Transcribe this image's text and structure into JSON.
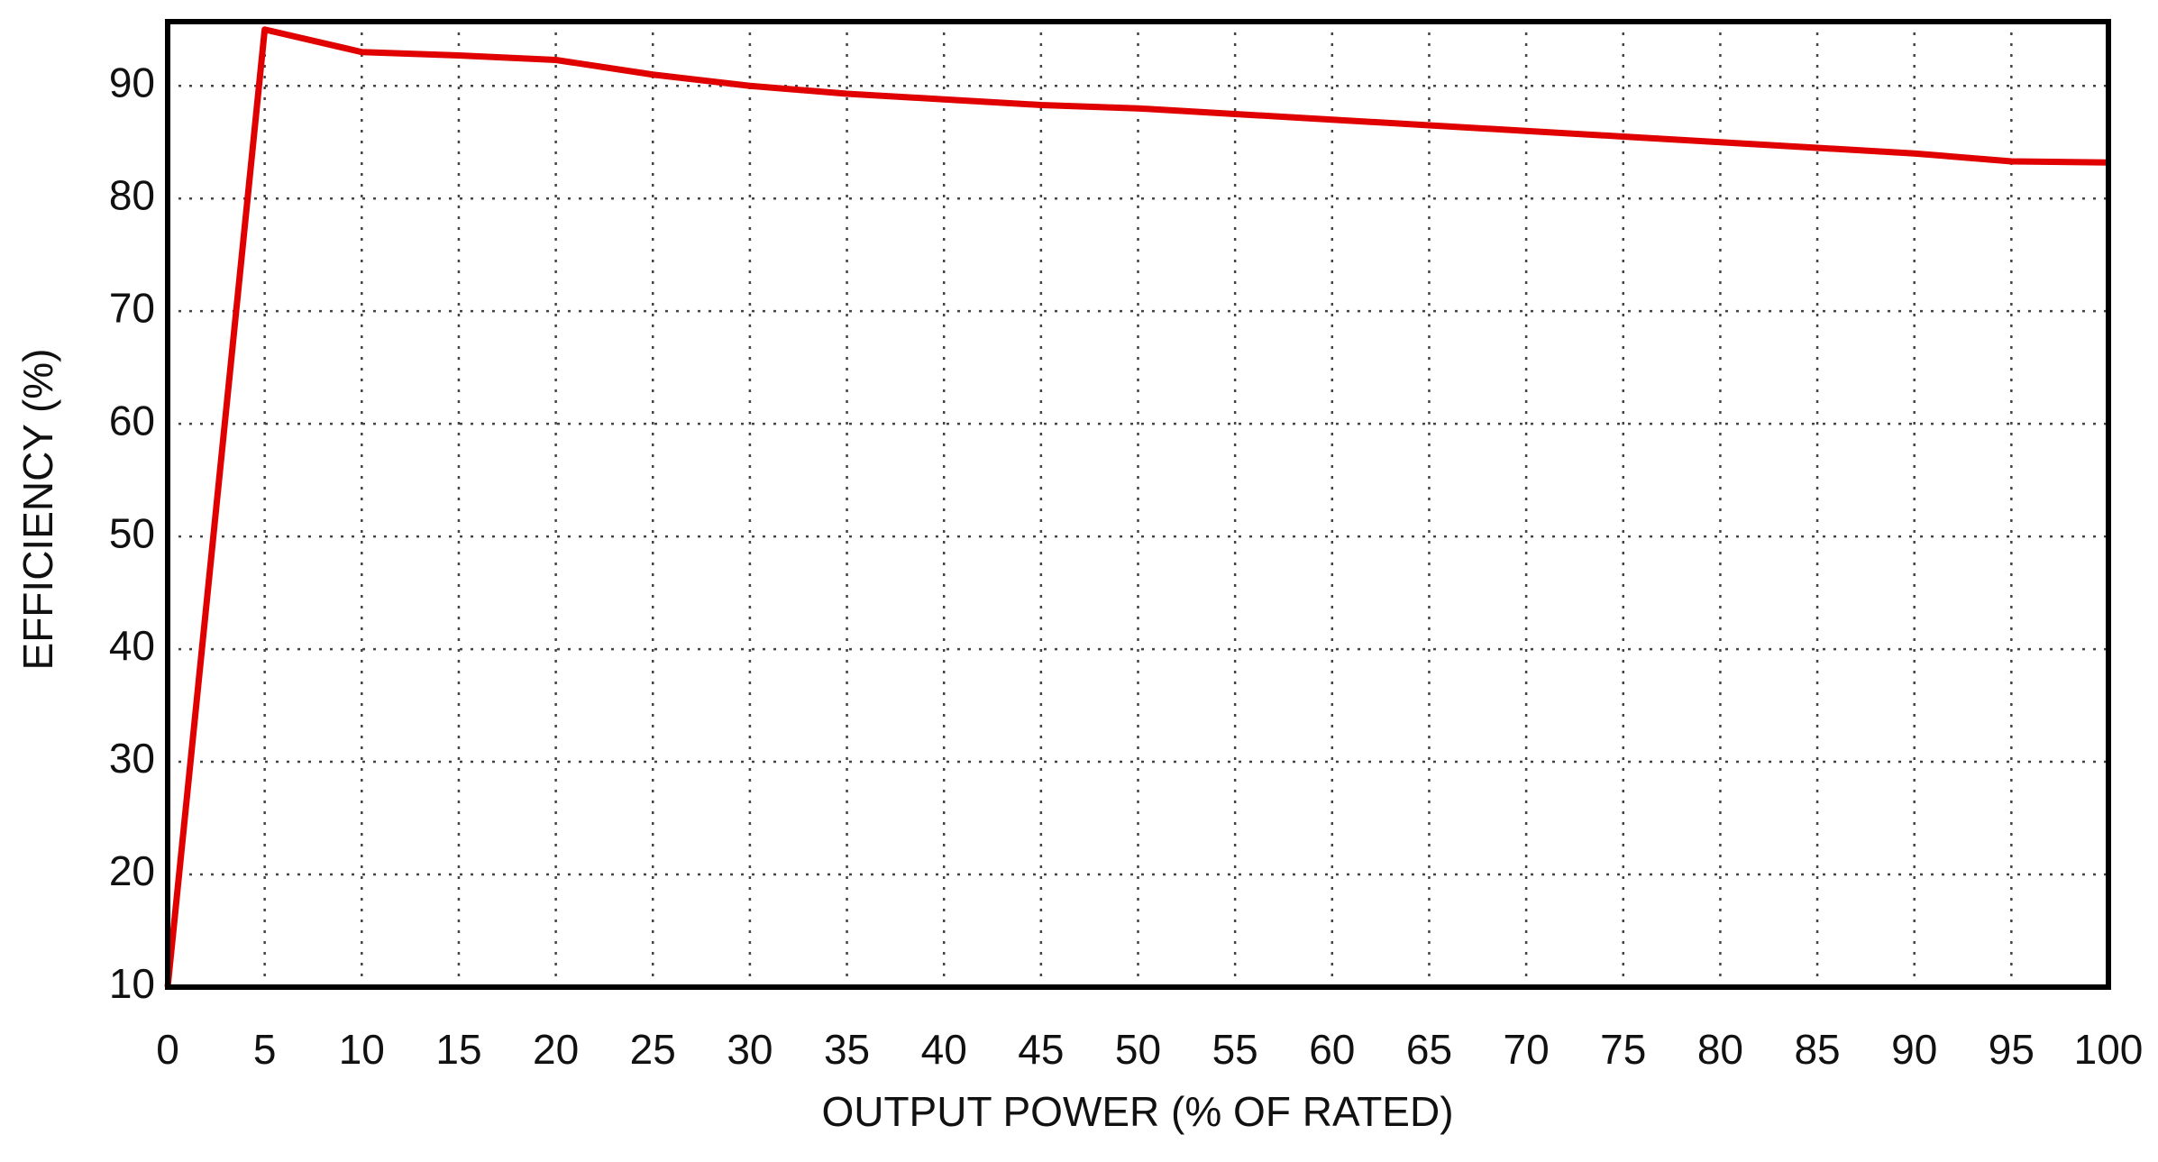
{
  "chart_data": {
    "type": "line",
    "x_label": "OUTPUT POWER (% OF RATED)",
    "y_label": "EFFICIENCY (%)",
    "x": [
      0,
      5,
      10,
      15,
      20,
      25,
      30,
      35,
      40,
      45,
      50,
      55,
      60,
      65,
      70,
      75,
      80,
      85,
      90,
      95,
      100
    ],
    "series": [
      {
        "color": "#e00000",
        "values": [
          10,
          95,
          93,
          92.7,
          92.3,
          91,
          90,
          89.3,
          88.8,
          88.3,
          88,
          87.5,
          87,
          86.5,
          86,
          85.5,
          85,
          84.5,
          84,
          83.3,
          83.2
        ]
      }
    ],
    "xlim": [
      0,
      100
    ],
    "xticks": [
      0,
      5,
      10,
      15,
      20,
      25,
      30,
      35,
      40,
      45,
      50,
      55,
      60,
      65,
      70,
      75,
      80,
      85,
      90,
      95,
      100
    ],
    "ylim": [
      10,
      95.7
    ],
    "yticks": [
      10,
      20,
      30,
      40,
      50,
      60,
      70,
      80,
      90
    ],
    "grid": true
  }
}
